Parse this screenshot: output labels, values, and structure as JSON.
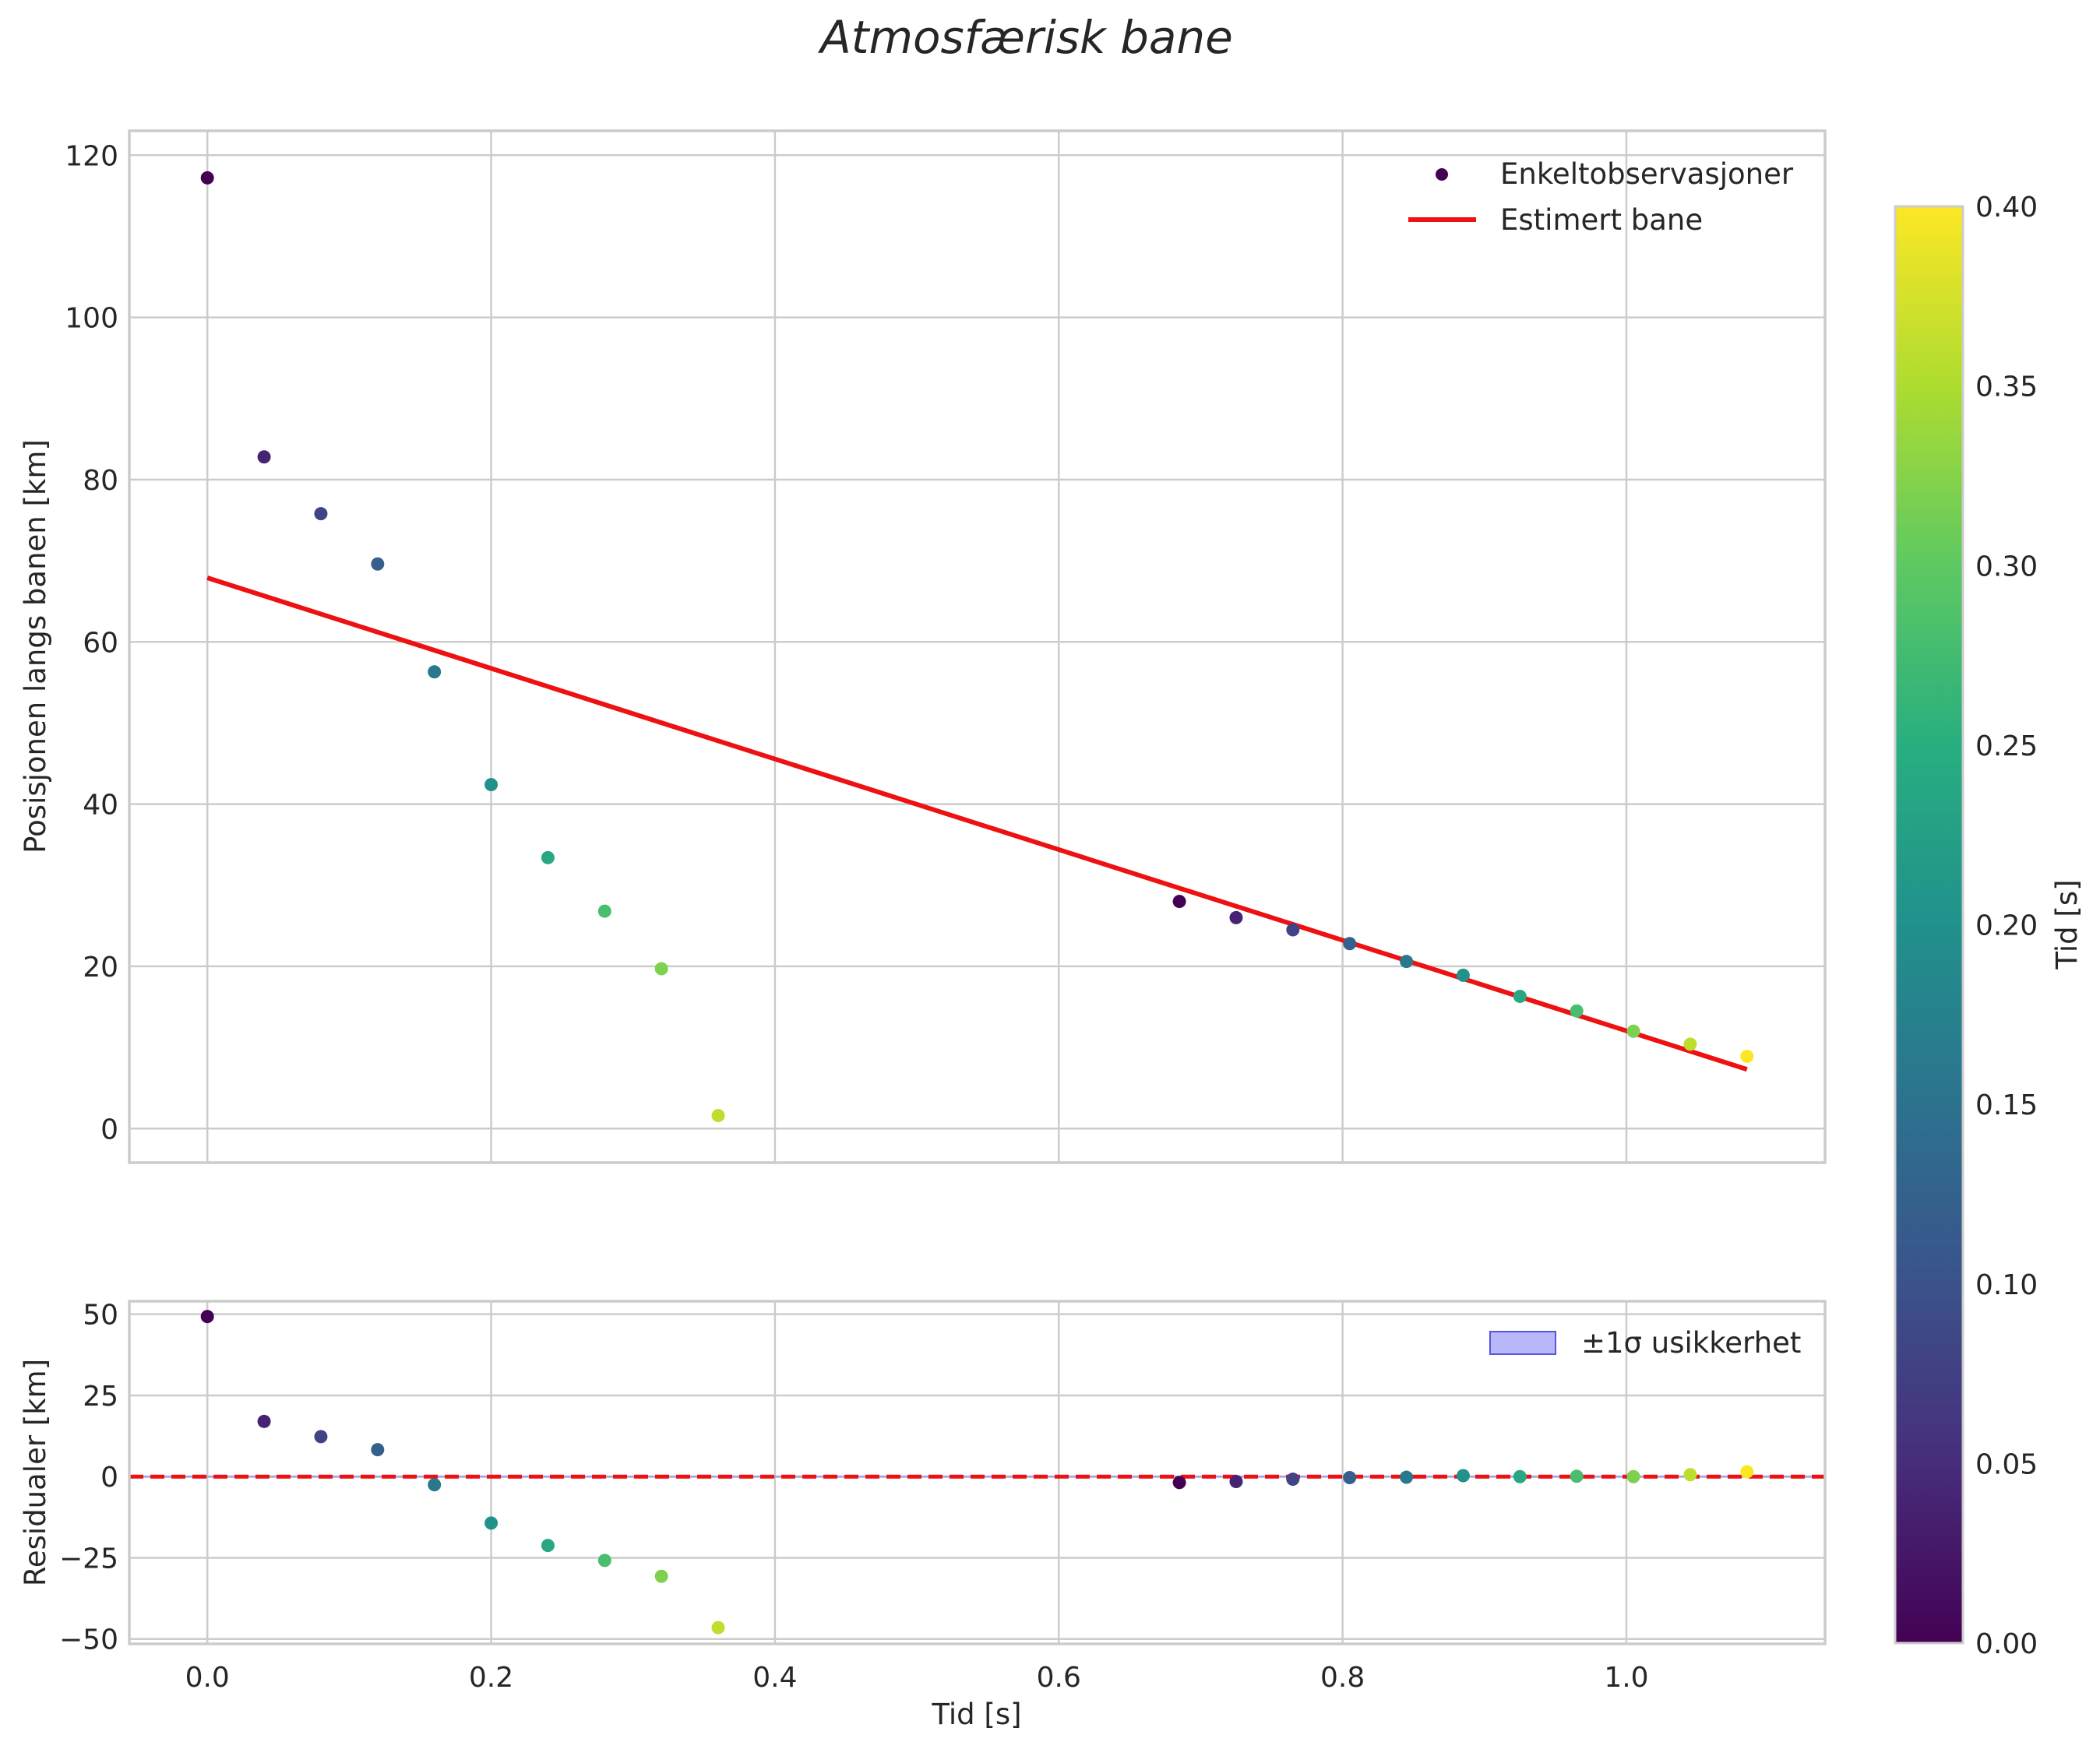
{
  "chart_data": {
    "type": "scatter",
    "title": "Atmosfærisk bane",
    "colormap": "viridis",
    "panels": [
      {
        "id": "main",
        "ylabel": "Posisjonen langs banen [km]",
        "xlim": [
          -0.055,
          1.14
        ],
        "ylim": [
          -4.2,
          123
        ],
        "yticks": [
          0,
          20,
          40,
          60,
          80,
          100,
          120
        ],
        "xticks": [
          0.0,
          0.2,
          0.4,
          0.6,
          0.8,
          1.0
        ],
        "series": [
          {
            "name": "Enkeltobservasjoner",
            "kind": "scatter",
            "points": [
              {
                "x": 0.0,
                "y": 117.2,
                "c": 0.0
              },
              {
                "x": 0.04,
                "y": 82.8,
                "c": 0.04
              },
              {
                "x": 0.08,
                "y": 75.8,
                "c": 0.08
              },
              {
                "x": 0.12,
                "y": 69.6,
                "c": 0.12
              },
              {
                "x": 0.16,
                "y": 56.3,
                "c": 0.16
              },
              {
                "x": 0.2,
                "y": 42.4,
                "c": 0.2
              },
              {
                "x": 0.24,
                "y": 33.4,
                "c": 0.24
              },
              {
                "x": 0.28,
                "y": 26.8,
                "c": 0.28
              },
              {
                "x": 0.32,
                "y": 19.7,
                "c": 0.32
              },
              {
                "x": 0.36,
                "y": 1.6,
                "c": 0.36
              },
              {
                "x": 0.685,
                "y": 28.0,
                "c": 0.0
              },
              {
                "x": 0.725,
                "y": 26.0,
                "c": 0.04
              },
              {
                "x": 0.765,
                "y": 24.5,
                "c": 0.08
              },
              {
                "x": 0.805,
                "y": 22.8,
                "c": 0.12
              },
              {
                "x": 0.845,
                "y": 20.6,
                "c": 0.16
              },
              {
                "x": 0.885,
                "y": 18.9,
                "c": 0.2
              },
              {
                "x": 0.925,
                "y": 16.3,
                "c": 0.24
              },
              {
                "x": 0.965,
                "y": 14.5,
                "c": 0.28
              },
              {
                "x": 1.005,
                "y": 12.0,
                "c": 0.32
              },
              {
                "x": 1.045,
                "y": 10.4,
                "c": 0.36
              },
              {
                "x": 1.085,
                "y": 8.9,
                "c": 0.4
              }
            ]
          },
          {
            "name": "Estimert bane",
            "kind": "line",
            "color": "#ee1111",
            "x": [
              0.0,
              1.085
            ],
            "y": [
              67.9,
              7.3
            ]
          }
        ],
        "legend_location": "top-right"
      },
      {
        "id": "residuals",
        "ylabel": "Residualer [km]",
        "xlabel": "Tid [s]",
        "xlim": [
          -0.055,
          1.14
        ],
        "ylim": [
          -51.5,
          54
        ],
        "yticks": [
          -50,
          -25,
          0,
          25,
          50
        ],
        "xticks": [
          0.0,
          0.2,
          0.4,
          0.6,
          0.8,
          1.0
        ],
        "series": [
          {
            "name": "Residualer",
            "kind": "scatter",
            "points": [
              {
                "x": 0.0,
                "y": 49.3,
                "c": 0.0
              },
              {
                "x": 0.04,
                "y": 17.0,
                "c": 0.04
              },
              {
                "x": 0.08,
                "y": 12.3,
                "c": 0.08
              },
              {
                "x": 0.12,
                "y": 8.3,
                "c": 0.12
              },
              {
                "x": 0.16,
                "y": -2.5,
                "c": 0.16
              },
              {
                "x": 0.2,
                "y": -14.3,
                "c": 0.2
              },
              {
                "x": 0.24,
                "y": -21.2,
                "c": 0.24
              },
              {
                "x": 0.28,
                "y": -25.8,
                "c": 0.28
              },
              {
                "x": 0.32,
                "y": -30.7,
                "c": 0.32
              },
              {
                "x": 0.36,
                "y": -46.5,
                "c": 0.36
              },
              {
                "x": 0.685,
                "y": -1.8,
                "c": 0.0
              },
              {
                "x": 0.725,
                "y": -1.5,
                "c": 0.04
              },
              {
                "x": 0.765,
                "y": -0.8,
                "c": 0.08
              },
              {
                "x": 0.805,
                "y": -0.3,
                "c": 0.12
              },
              {
                "x": 0.845,
                "y": -0.2,
                "c": 0.16
              },
              {
                "x": 0.885,
                "y": 0.3,
                "c": 0.2
              },
              {
                "x": 0.925,
                "y": 0.0,
                "c": 0.24
              },
              {
                "x": 0.965,
                "y": 0.1,
                "c": 0.28
              },
              {
                "x": 1.005,
                "y": 0.0,
                "c": 0.32
              },
              {
                "x": 1.045,
                "y": 0.6,
                "c": 0.36
              },
              {
                "x": 1.085,
                "y": 1.5,
                "c": 0.4
              }
            ]
          },
          {
            "name": "±1σ usikkerhet",
            "kind": "band",
            "color": "#7b7bf5",
            "lower": -0.35,
            "upper": 0.35
          },
          {
            "name": "zero line",
            "kind": "hline",
            "y": 0,
            "color": "#ee1111",
            "style": "dashed"
          }
        ],
        "legend_location": "top-right"
      }
    ],
    "colorbar": {
      "label": "Tid [s]",
      "range": [
        0.0,
        0.4
      ],
      "ticks": [
        0.0,
        0.05,
        0.1,
        0.15,
        0.2,
        0.25,
        0.3,
        0.35,
        0.4
      ]
    }
  }
}
